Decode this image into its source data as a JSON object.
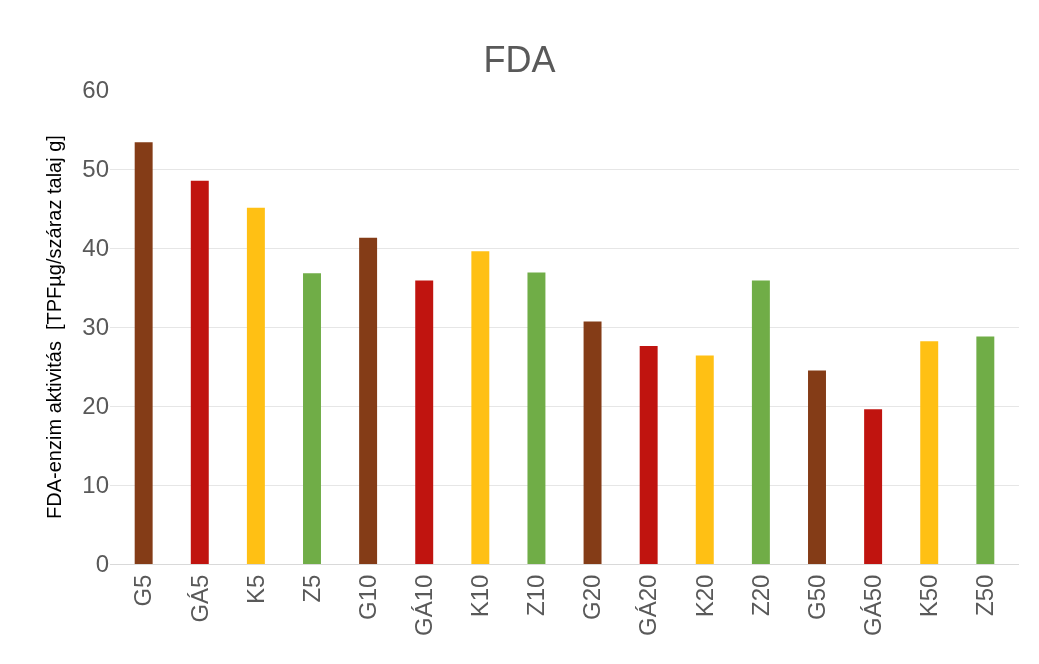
{
  "chart_data": {
    "type": "bar",
    "title": "FDA",
    "ylabel": "FDA-enzim aktivitás  [TPFµg/száraz talaj g]",
    "categories": [
      "G5",
      "GÁ5",
      "K5",
      "Z5",
      "G10",
      "GÁ10",
      "K10",
      "Z10",
      "G20",
      "GÁ20",
      "K20",
      "Z20",
      "G50",
      "GÁ50",
      "K50",
      "Z50"
    ],
    "values": [
      53.4,
      48.5,
      45.1,
      36.8,
      41.3,
      35.9,
      39.6,
      36.9,
      30.7,
      27.6,
      26.4,
      35.9,
      24.5,
      19.6,
      28.2,
      28.8
    ],
    "colors": [
      "#843c17",
      "#c0140f",
      "#ffc014",
      "#70ad47",
      "#843c17",
      "#c0140f",
      "#ffc014",
      "#70ad47",
      "#843c17",
      "#c0140f",
      "#ffc014",
      "#70ad47",
      "#843c17",
      "#c0140f",
      "#ffc014",
      "#70ad47"
    ],
    "ylim": [
      0,
      60
    ],
    "yticks": [
      0,
      10,
      20,
      30,
      40,
      50,
      60
    ],
    "grid": "y"
  }
}
